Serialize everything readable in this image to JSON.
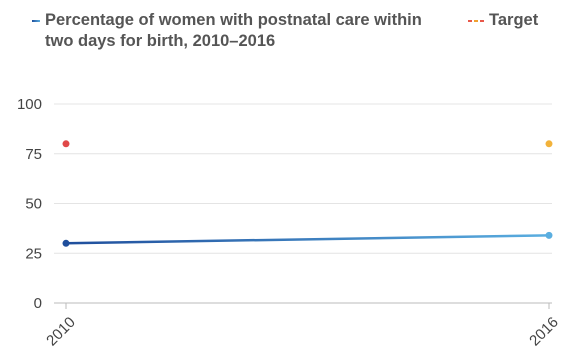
{
  "chart_data": {
    "type": "line",
    "x": [
      "2010",
      "2016"
    ],
    "series": [
      {
        "name": "Percentage of women with postnatal care within two days for birth, 2010–2016",
        "values": [
          30,
          34
        ],
        "style": "solid",
        "colors": [
          "#1f4e9c",
          "#5aaee0"
        ]
      },
      {
        "name": "Target",
        "values": [
          80,
          80
        ],
        "style": "dashed",
        "colors": [
          "#e04848",
          "#f2b23a"
        ]
      }
    ],
    "yticks": [
      "0",
      "25",
      "50",
      "75",
      "100"
    ],
    "ytick_values": [
      0,
      25,
      50,
      75,
      100
    ],
    "xticks": [
      "2010",
      "2016"
    ],
    "ylim": [
      0,
      100
    ],
    "grid": true,
    "legend": "top"
  }
}
